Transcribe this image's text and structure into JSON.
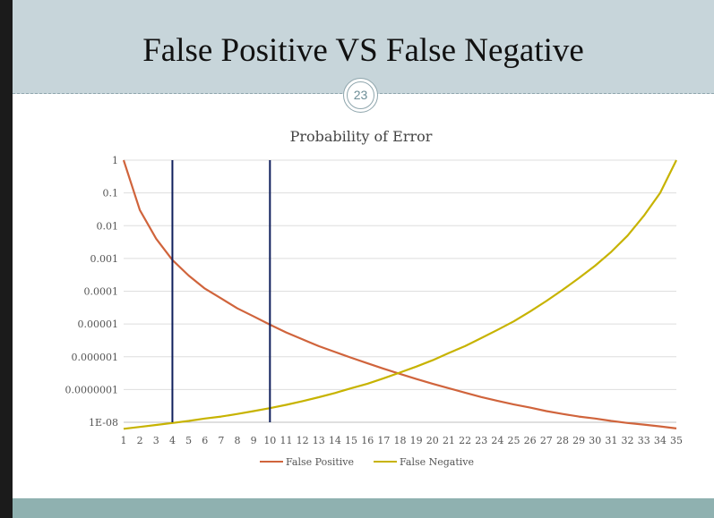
{
  "slide": {
    "title": "False Positive VS False Negative",
    "page_number": "23"
  },
  "colors": {
    "header_bg": "#c7d5da",
    "footer_bg": "#8fb1b0",
    "false_positive": "#d0643c",
    "false_negative": "#c7b300",
    "threshold_lines": "#0f1f5c"
  },
  "chart_data": {
    "type": "line",
    "title": "Probability of Error",
    "y_scale": "log",
    "ylim": [
      1e-08,
      1
    ],
    "ytick_labels": [
      "1",
      "0.1",
      "0.01",
      "0.001",
      "0.0001",
      "0.00001",
      "0.000001",
      "0.0000001",
      "1E-08"
    ],
    "categories": [
      "1",
      "2",
      "3",
      "4",
      "5",
      "6",
      "7",
      "8",
      "9",
      "10",
      "11",
      "12",
      "13",
      "14",
      "15",
      "16",
      "17",
      "18",
      "19",
      "20",
      "21",
      "22",
      "23",
      "24",
      "25",
      "26",
      "27",
      "28",
      "29",
      "30",
      "31",
      "32",
      "33",
      "34",
      "35"
    ],
    "series": [
      {
        "name": "False Positive",
        "values": [
          1,
          0.03,
          0.004,
          0.0009,
          0.0003,
          0.00012,
          6e-05,
          3e-05,
          1.7e-05,
          9.5e-06,
          5.5e-06,
          3.4e-06,
          2.1e-06,
          1.4e-06,
          9.3e-07,
          6.3e-07,
          4.3e-07,
          3e-07,
          2.1e-07,
          1.5e-07,
          1.1e-07,
          8e-08,
          5.9e-08,
          4.5e-08,
          3.5e-08,
          2.8e-08,
          2.2e-08,
          1.8e-08,
          1.5e-08,
          1.3e-08,
          1.1e-08,
          9.5e-09,
          8.5e-09,
          7.5e-09,
          6.5e-09
        ]
      },
      {
        "name": "False Negative",
        "values": [
          6.3e-09,
          7.2e-09,
          8.3e-09,
          9.5e-09,
          1.1e-08,
          1.3e-08,
          1.5e-08,
          1.8e-08,
          2.2e-08,
          2.7e-08,
          3.4e-08,
          4.4e-08,
          5.8e-08,
          7.8e-08,
          1.1e-07,
          1.5e-07,
          2.2e-07,
          3.3e-07,
          5e-07,
          7.8e-07,
          1.3e-06,
          2.1e-06,
          3.7e-06,
          6.6e-06,
          1.2e-05,
          2.4e-05,
          5e-05,
          0.00011,
          0.00025,
          0.0006,
          0.0016,
          0.005,
          0.02,
          0.1,
          1
        ]
      }
    ],
    "vertical_markers": [
      4,
      10
    ],
    "grid": true,
    "legend": "bottom"
  }
}
